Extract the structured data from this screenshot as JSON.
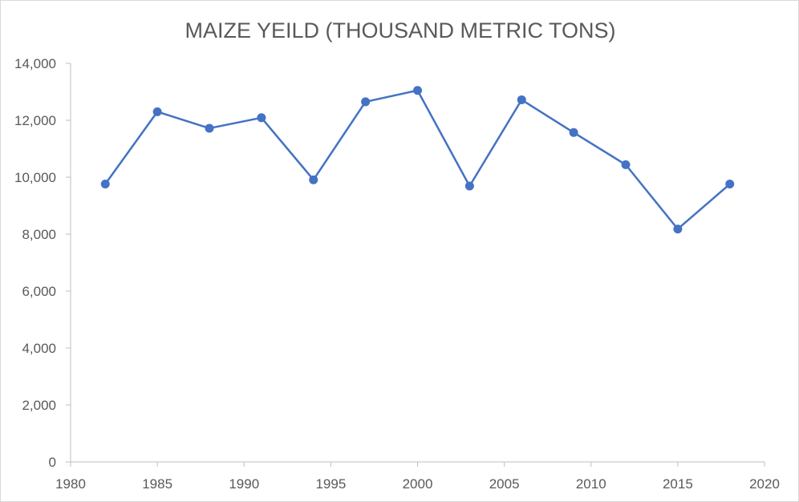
{
  "chart_data": {
    "type": "scatter",
    "mode": "lines+markers",
    "title": "MAIZE YEILD (THOUSAND METRIC TONS)",
    "xlabel": "",
    "ylabel": "",
    "x": [
      1982,
      1985,
      1988,
      1991,
      1994,
      1997,
      2000,
      2003,
      2006,
      2009,
      2012,
      2015,
      2018
    ],
    "series": [
      {
        "values": [
          9760,
          12300,
          11720,
          12090,
          9910,
          12650,
          13050,
          9690,
          12720,
          11570,
          10440,
          8180,
          9760
        ]
      }
    ],
    "xlim": [
      1980,
      2020
    ],
    "ylim": [
      0,
      14000
    ],
    "x_ticks": [
      "1980",
      "1985",
      "1990",
      "1995",
      "2000",
      "2005",
      "2010",
      "2015",
      "2020"
    ],
    "y_ticks": [
      "0",
      "2,000",
      "4,000",
      "6,000",
      "8,000",
      "10,000",
      "12,000",
      "14,000"
    ],
    "grid": false,
    "legend": "none",
    "colors": {
      "series": "#4472c4",
      "axis": "#bfbfbf",
      "text": "#595959"
    }
  }
}
